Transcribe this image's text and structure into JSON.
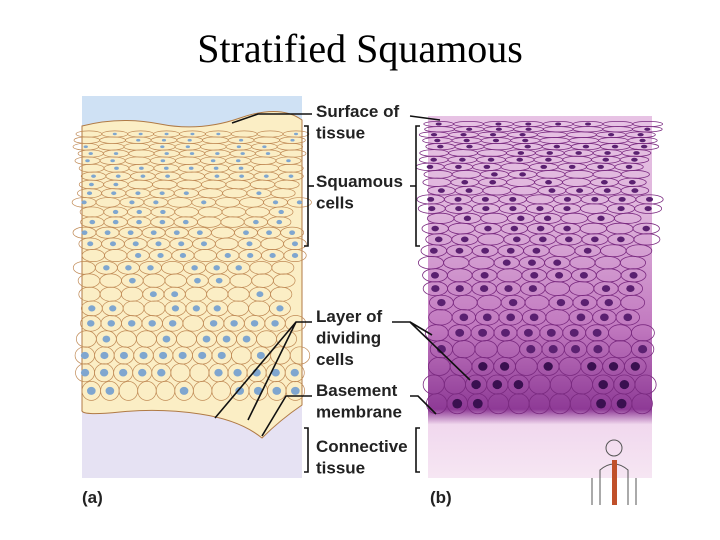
{
  "header": {
    "title": "Stratified Squamous"
  },
  "labels": [
    {
      "lines": [
        "Surface of",
        "tissue"
      ]
    },
    {
      "lines": [
        "Squamous",
        "cells"
      ]
    },
    {
      "lines": [
        "Layer of",
        "dividing",
        "cells"
      ]
    },
    {
      "lines": [
        "Basement",
        "membrane"
      ]
    },
    {
      "lines": [
        "Connective",
        "tissue"
      ]
    }
  ],
  "panels": [
    "(a)",
    "(b)"
  ]
}
